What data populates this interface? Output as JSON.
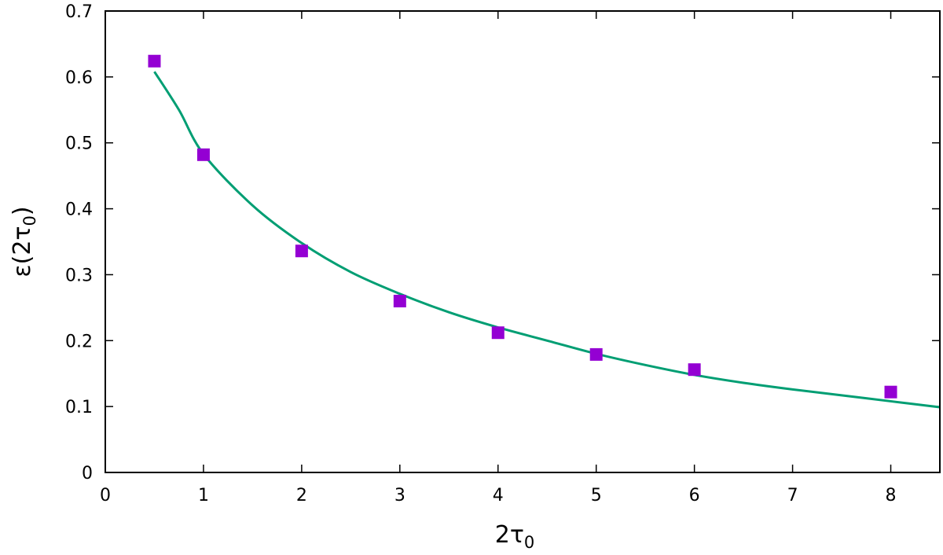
{
  "chart_data": {
    "type": "scatter",
    "xlabel": {
      "main": "2τ",
      "sub": "0"
    },
    "ylabel": {
      "main": "ε(2τ",
      "sub": "0",
      "close": ")"
    },
    "xlim": [
      0,
      8.5
    ],
    "ylim": [
      0,
      0.7
    ],
    "x_ticks": [
      0,
      1,
      2,
      3,
      4,
      5,
      6,
      7,
      8
    ],
    "y_ticks": [
      0,
      0.1,
      0.2,
      0.3,
      0.4,
      0.5,
      0.6,
      0.7
    ],
    "x_tick_labels": [
      "0",
      "1",
      "2",
      "3",
      "4",
      "5",
      "6",
      "7",
      "8"
    ],
    "y_tick_labels": [
      "0",
      "0.1",
      "0.2",
      "0.3",
      "0.4",
      "0.5",
      "0.6",
      "0.7"
    ],
    "grid": false,
    "series": [
      {
        "kind": "points",
        "marker": "square",
        "color": "#9400d3",
        "x": [
          0.5,
          1,
          2,
          3,
          4,
          5,
          6,
          8
        ],
        "y": [
          0.624,
          0.482,
          0.336,
          0.26,
          0.212,
          0.179,
          0.156,
          0.122
        ]
      },
      {
        "kind": "curve",
        "color": "#009e73",
        "x": [
          0.5,
          0.75,
          1,
          1.5,
          2,
          2.5,
          3,
          3.5,
          4,
          4.5,
          5,
          5.5,
          6,
          6.5,
          7,
          7.5,
          8,
          8.5
        ],
        "y": [
          0.608,
          0.55,
          0.483,
          0.405,
          0.348,
          0.304,
          0.271,
          0.243,
          0.22,
          0.2,
          0.18,
          0.163,
          0.148,
          0.136,
          0.126,
          0.117,
          0.108,
          0.099
        ]
      }
    ]
  }
}
